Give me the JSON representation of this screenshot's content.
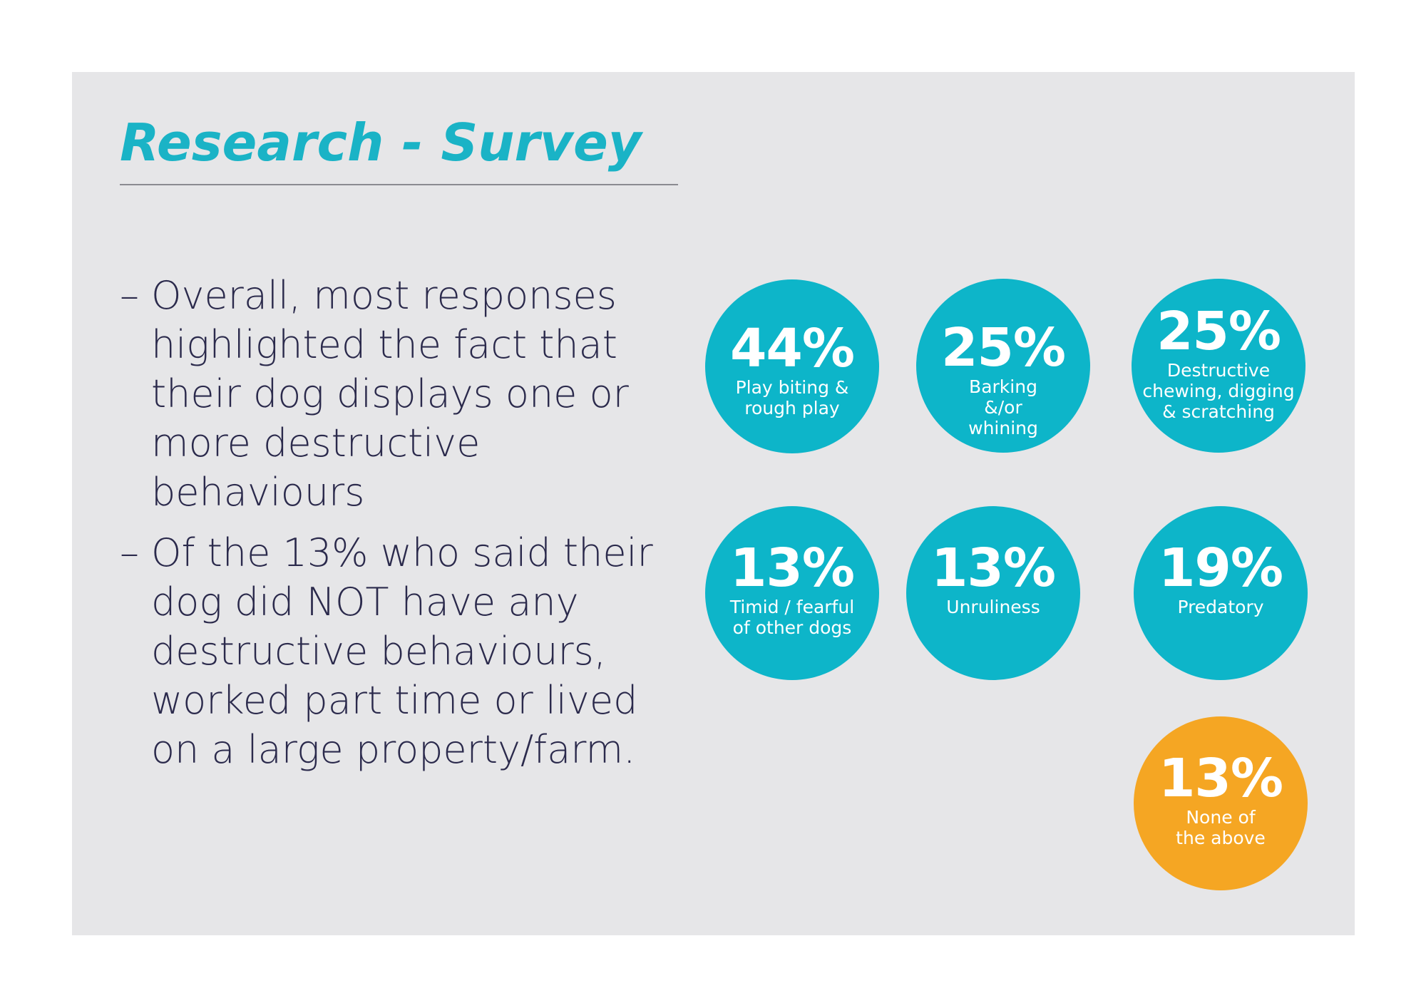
{
  "title": "Research - Survey",
  "bullets": [
    {
      "dash": "–",
      "text": "Overall, most responses highlighted the fact that their dog displays one or more destructive behaviours"
    },
    {
      "dash": "–",
      "text": "Of the 13% who said their dog did NOT have any destructive behaviours, worked part time or lived on a large property/farm."
    }
  ],
  "stats": [
    {
      "value": "44%",
      "label": "Play biting & rough play",
      "color": "#0db5c9"
    },
    {
      "value": "25%",
      "label": "Barking &/or whining",
      "color": "#0db5c9"
    },
    {
      "value": "25%",
      "label": "Destructive chewing, digging & scratching",
      "color": "#0db5c9"
    },
    {
      "value": "13%",
      "label": "Timid / fearful of other dogs",
      "color": "#0db5c9"
    },
    {
      "value": "13%",
      "label": "Unruliness",
      "color": "#0db5c9"
    },
    {
      "value": "19%",
      "label": "Predatory",
      "color": "#0db5c9"
    },
    {
      "value": "13%",
      "label": "None of the above",
      "color": "#f5a623"
    }
  ],
  "colors": {
    "title": "#1ab3c6",
    "body_text": "#2b2a4c",
    "panel": "#e6e6e8",
    "teal": "#0db5c9",
    "orange": "#f5a623"
  }
}
